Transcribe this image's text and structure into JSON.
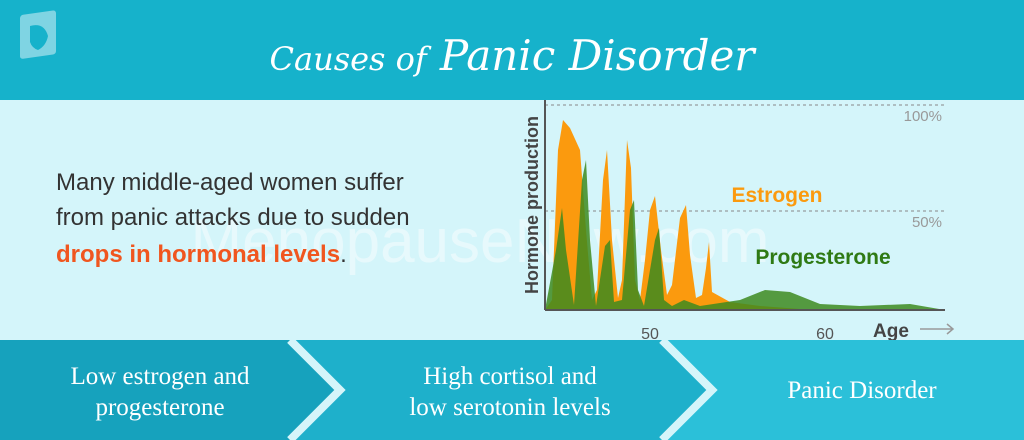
{
  "header": {
    "title_prefix": "Causes of",
    "title_main": "Panic Disorder"
  },
  "watermark": "MenopauseNow.com",
  "intro": {
    "lines": [
      "Many middle-aged women suffer",
      "from panic attacks due to sudden"
    ],
    "highlight": "drops in hormonal levels",
    "end": "."
  },
  "chart": {
    "y_label": "Hormone production",
    "x_label": "Age",
    "x_tick_labels": [
      "50",
      "60"
    ],
    "reference_labels": [
      "100%",
      "50%"
    ],
    "series_labels": [
      "Estrogen",
      "Progesterone"
    ]
  },
  "steps": [
    {
      "lines": [
        "Low estrogen and",
        "progesterone"
      ]
    },
    {
      "lines": [
        "High cortisol and",
        "low serotonin levels"
      ]
    },
    {
      "lines": [
        "Panic Disorder"
      ]
    }
  ]
}
